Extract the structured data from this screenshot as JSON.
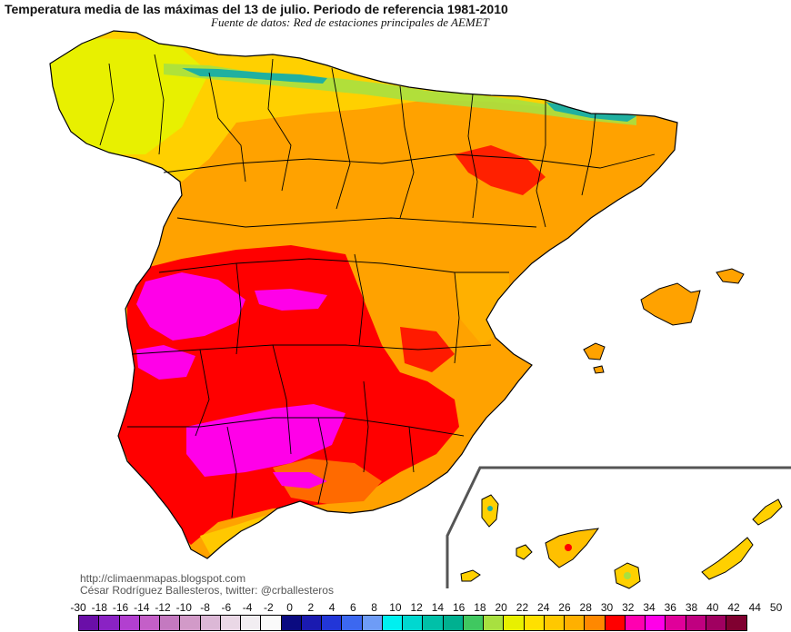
{
  "header": {
    "title": "Temperatura media de las máximas del 13 de julio. Periodo de referencia 1981-2010",
    "subtitle": "Fuente de datos: Red de estaciones principales de AEMET"
  },
  "credits": {
    "blog": "http://climaenmapas.blogspot.com",
    "author": "César Rodríguez Ballesteros, twitter: @crballesteros"
  },
  "legend": {
    "ticks": [
      "-30",
      "-18",
      "-16",
      "-14",
      "-12",
      "-10",
      "-8",
      "-6",
      "-4",
      "-2",
      "0",
      "2",
      "4",
      "6",
      "8",
      "10",
      "12",
      "14",
      "16",
      "18",
      "20",
      "22",
      "24",
      "26",
      "28",
      "30",
      "32",
      "34",
      "36",
      "38",
      "40",
      "42",
      "44",
      "50"
    ],
    "colors": [
      "#6a0fa8",
      "#8a22c4",
      "#b23fd0",
      "#c45fc8",
      "#c479c0",
      "#d29ac8",
      "#dcb8d6",
      "#ead8e6",
      "#f2eef2",
      "#fafafa",
      "#0a0a80",
      "#1a1ab0",
      "#2236d8",
      "#3c68f0",
      "#6e9cf6",
      "#00f0f0",
      "#00d8d0",
      "#00c0a8",
      "#00b090",
      "#40c860",
      "#a8e040",
      "#e8f000",
      "#ffe000",
      "#ffc800",
      "#ffb000",
      "#ff8800",
      "#ff0000",
      "#ff00b0",
      "#ff00e8",
      "#e0009a",
      "#c00080",
      "#a00060",
      "#800030"
    ]
  },
  "map": {
    "main_colors": {
      "cool": "#20b0a0",
      "mild": "#e8f000",
      "warm": "#ffd000",
      "hot": "#ff9a00",
      "very_hot": "#ff0000",
      "extreme": "#ff00e8"
    },
    "regions": [
      "Península Ibérica (España)",
      "Islas Baleares",
      "Islas Canarias"
    ]
  }
}
